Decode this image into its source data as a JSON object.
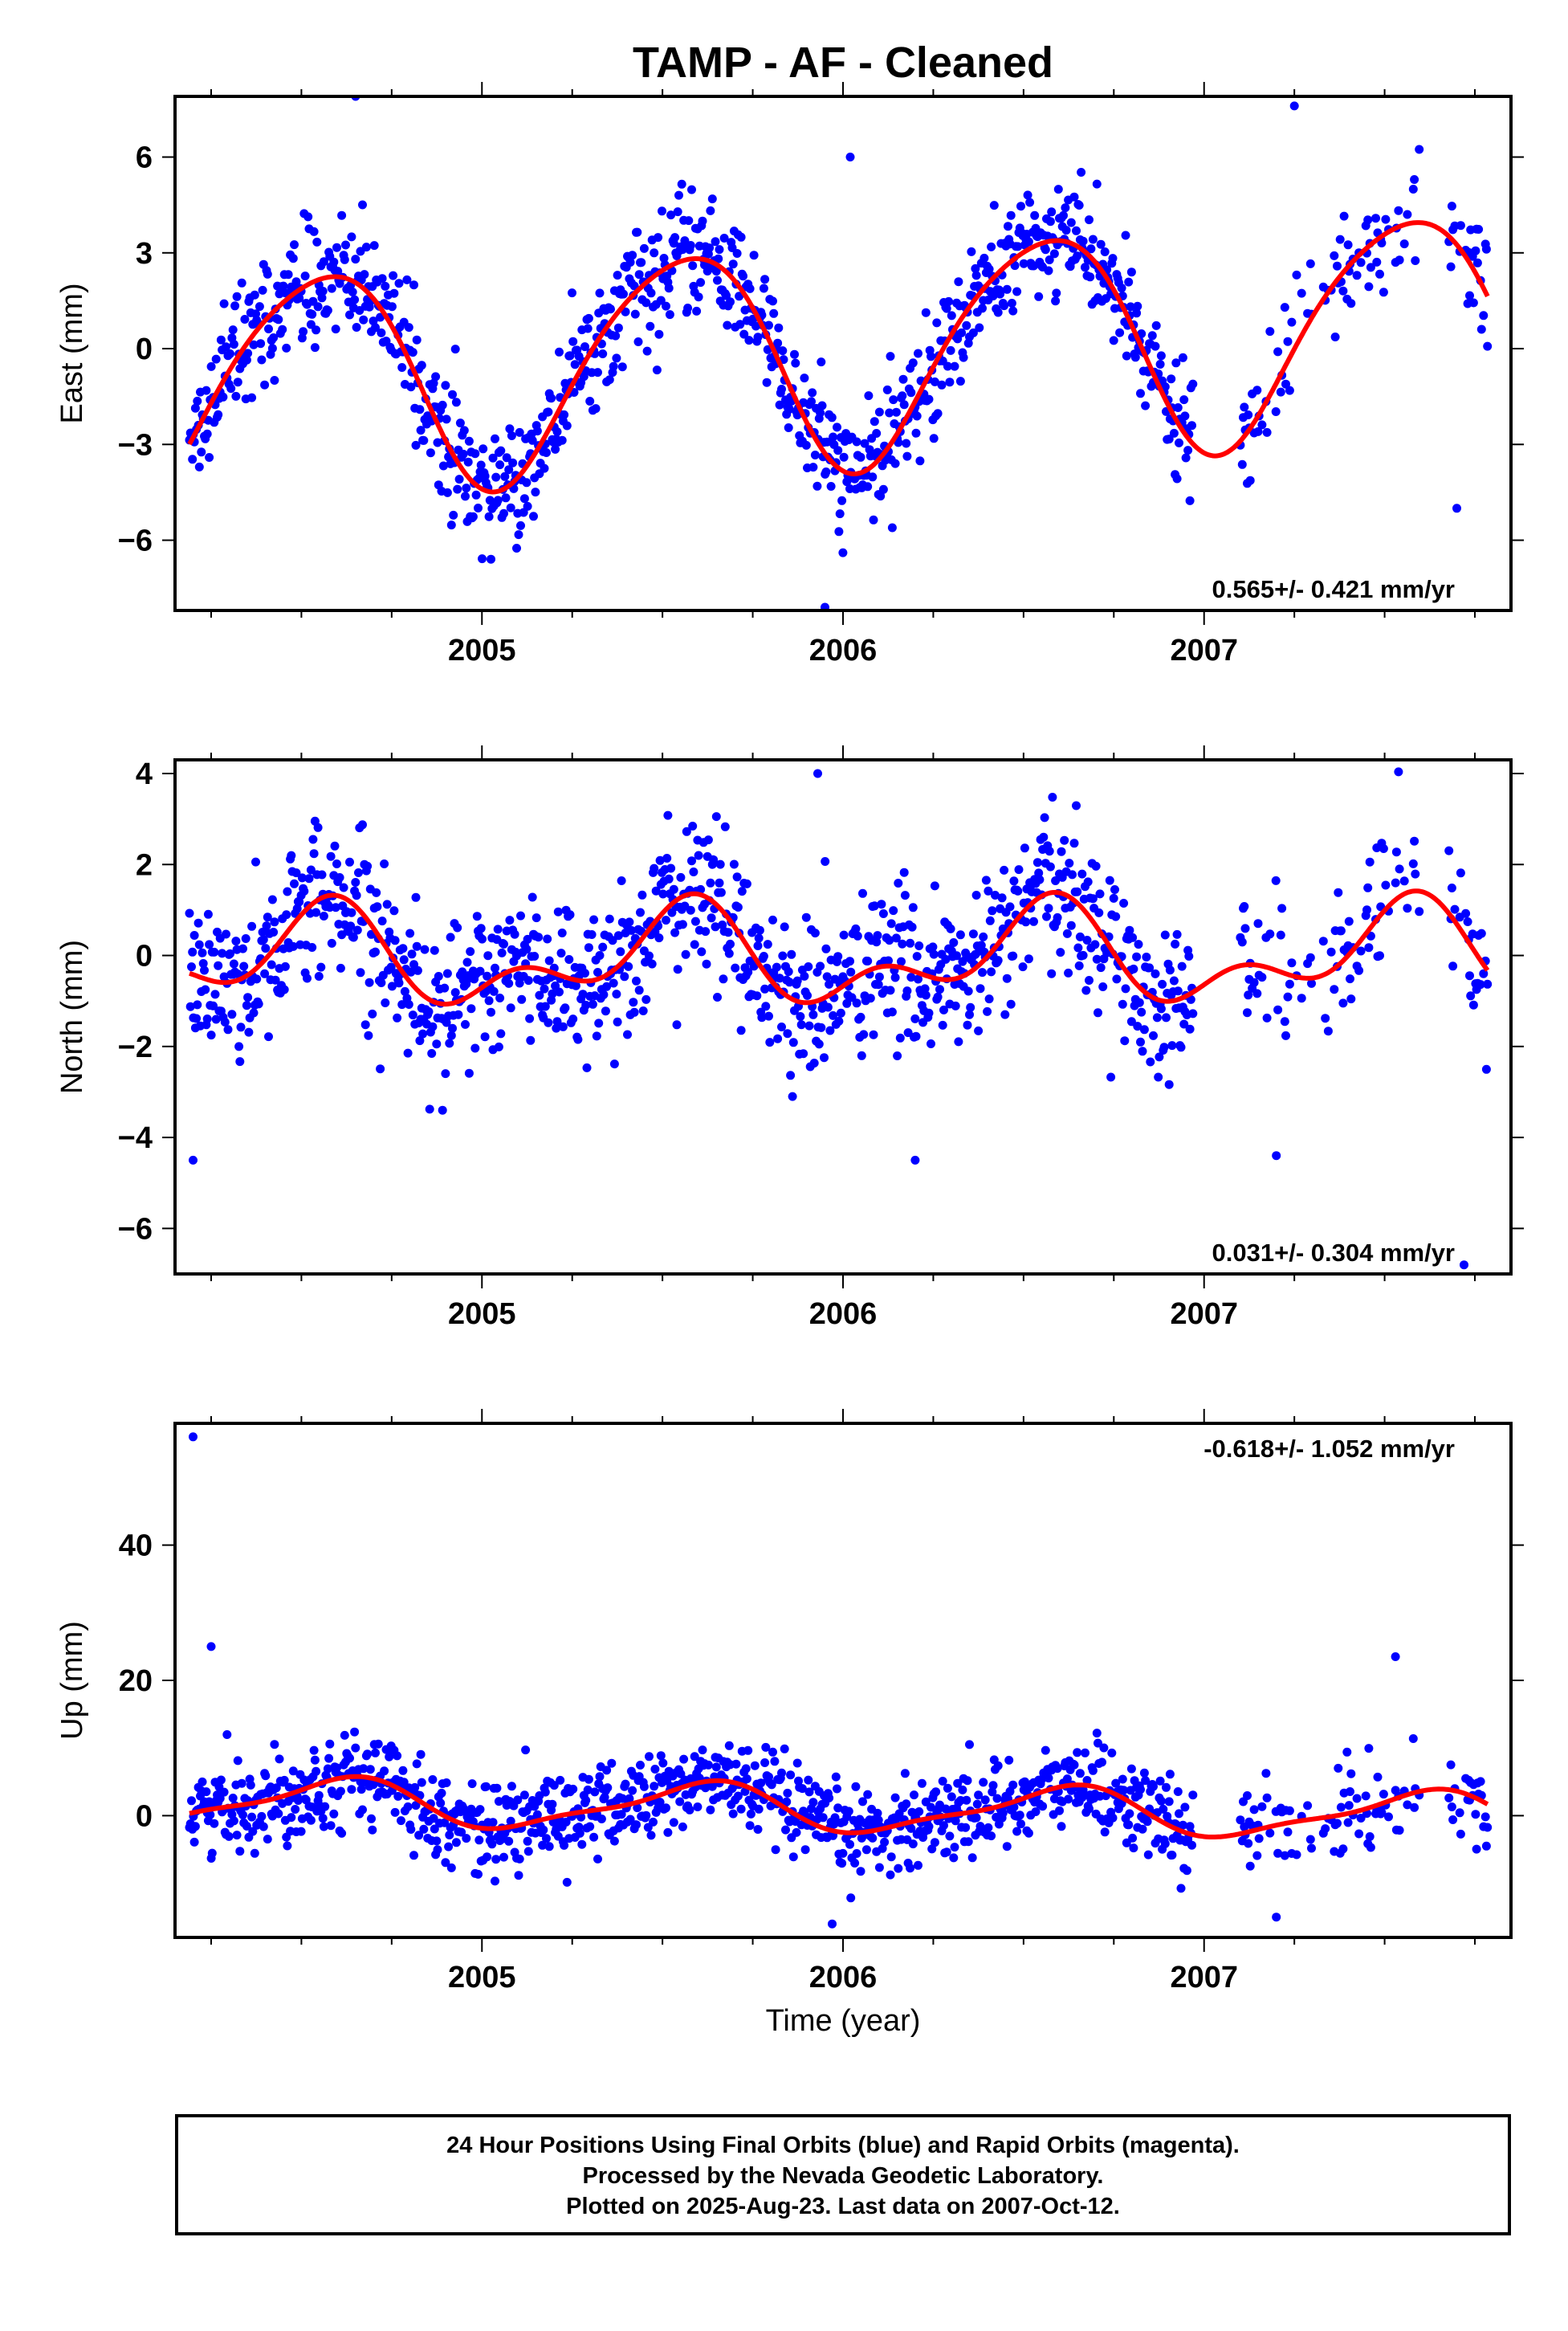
{
  "title": "TAMP  - AF - Cleaned",
  "colors": {
    "points": "#0000ff",
    "fit": "#ff0000",
    "frame": "#000000"
  },
  "xaxis": {
    "label": "Time (year)",
    "range": [
      2004.15,
      2007.85
    ],
    "ticks": [
      "2005",
      "2006",
      "2007"
    ],
    "tick_values": [
      2005,
      2006,
      2007
    ]
  },
  "footer": {
    "line1": "24 Hour Positions Using Final Orbits (blue) and Rapid Orbits (magenta).",
    "line2": "Processed by the Nevada Geodetic Laboratory.",
    "line3": "Plotted on 2025-Aug-23. Last data on 2007-Oct-12."
  },
  "chart_data": [
    {
      "type": "scatter",
      "panel": "east",
      "ylabel": "East (mm)",
      "ylim": [
        -8.2,
        7.9
      ],
      "yticks": [
        -6,
        -3,
        0,
        3,
        6
      ],
      "yticklabels": [
        "−6",
        "−3",
        "0",
        "3",
        "6"
      ],
      "rate_text": "0.565+/- 0.421 mm/yr",
      "rate_position": "bottom-right",
      "fit": {
        "offset": -0.1,
        "slope": 0.565,
        "annual_amp": 3.45,
        "annual_peak": 0.55,
        "semi_amp": 0.45,
        "semi_peak": 0.25
      },
      "points": {
        "noise_sd": 0.9,
        "outliers": [
          [
            2004.65,
            7.9
          ],
          [
            2006.02,
            6.0
          ],
          [
            2007.25,
            7.6
          ],
          [
            2005.95,
            -8.1
          ],
          [
            2007.7,
            -5.0
          ]
        ]
      }
    },
    {
      "type": "scatter",
      "panel": "north",
      "ylabel": "North (mm)",
      "ylim": [
        -7.0,
        4.3
      ],
      "yticks": [
        -6,
        -4,
        -2,
        0,
        2,
        4
      ],
      "yticklabels": [
        "−6",
        "−4",
        "−2",
        "0",
        "2",
        "4"
      ],
      "rate_text": "0.031+/- 0.304 mm/yr",
      "rate_position": "bottom-right",
      "fit": {
        "offset": -0.05,
        "slope": 0.031,
        "annual_amp": 0.85,
        "annual_peak": 0.55,
        "semi_amp": 0.6,
        "semi_peak": 0.1
      },
      "points": {
        "noise_sd": 0.85,
        "outliers": [
          [
            2004.2,
            -4.5
          ],
          [
            2005.93,
            4.0
          ],
          [
            2007.2,
            -4.4
          ],
          [
            2006.2,
            -4.5
          ],
          [
            2007.72,
            -6.8
          ]
        ]
      }
    },
    {
      "type": "scatter",
      "panel": "up",
      "ylabel": "Up (mm)",
      "ylim": [
        -18.0,
        58.0
      ],
      "yticks": [
        0,
        20,
        40
      ],
      "yticklabels": [
        "0",
        "20",
        "40"
      ],
      "rate_text": "-0.618+/- 1.052 mm/yr",
      "rate_position": "top-right",
      "fit": {
        "offset": 1.0,
        "slope": -0.618,
        "annual_amp": 3.3,
        "annual_peak": 0.6,
        "semi_amp": 1.0,
        "semi_peak": 0.2
      },
      "points": {
        "noise_sd": 3.2,
        "outliers": [
          [
            2004.2,
            56.0
          ],
          [
            2004.25,
            25.0
          ],
          [
            2007.53,
            23.5
          ],
          [
            2005.97,
            -16.0
          ],
          [
            2007.2,
            -15.0
          ]
        ]
      }
    }
  ]
}
